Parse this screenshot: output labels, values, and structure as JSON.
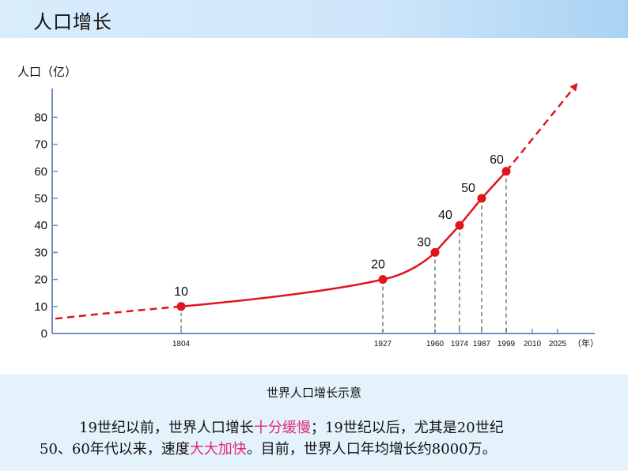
{
  "header": {
    "title": "人口增长"
  },
  "caption": "世界人口增长示意",
  "paragraph": {
    "line1_a": "19世纪以前，世界人口增长",
    "line1_b": "十分缓慢",
    "line1_c": "；19世纪以后，尤其是20世纪",
    "line2_a": "50、60年代以来，速度",
    "line2_b": "大大加快",
    "line2_c": "。目前，世界人口年均增长约8000万。"
  },
  "colors": {
    "line": "#e0151c",
    "highlight": "#e0297a",
    "axis": "#6b8fc4",
    "header": "#cfe6fa"
  },
  "chart_data": {
    "type": "line",
    "ylabel": "人口（亿）",
    "xlabel": "（年）",
    "yticks": [
      0,
      10,
      20,
      30,
      40,
      50,
      60,
      70,
      80
    ],
    "xticks": [
      "1804",
      "1927",
      "1960",
      "1974",
      "1987",
      "1999",
      "2010",
      "2025"
    ],
    "series": [
      {
        "values": [
          {
            "x": 1804,
            "y": 10,
            "label": "10"
          },
          {
            "x": 1927,
            "y": 20,
            "label": "20"
          },
          {
            "x": 1960,
            "y": 30,
            "label": "30"
          },
          {
            "x": 1974,
            "y": 40,
            "label": "40"
          },
          {
            "x": 1987,
            "y": 50,
            "label": "50"
          },
          {
            "x": 1999,
            "y": 60,
            "label": "60"
          }
        ]
      }
    ],
    "ylim": [
      0,
      80
    ],
    "grid": false
  }
}
